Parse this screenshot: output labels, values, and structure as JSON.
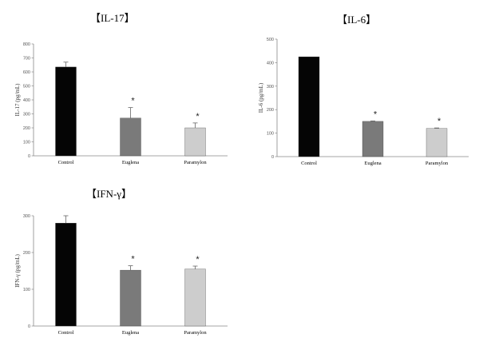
{
  "chart_data": [
    {
      "type": "bar",
      "title": "【IL-17】",
      "ylabel": "IL-17 (pg/mL)",
      "ylim": [
        0,
        800
      ],
      "yticks": [
        0,
        100,
        200,
        300,
        400,
        500,
        600,
        700,
        800
      ],
      "categories": [
        "Control",
        "Euglena",
        "Paramylon"
      ],
      "values": [
        635,
        270,
        200
      ],
      "errors": [
        35,
        75,
        35
      ],
      "significance": [
        "",
        "*",
        "*"
      ],
      "colors": [
        "#050505",
        "#7a7a7a",
        "#cdcdcd"
      ]
    },
    {
      "type": "bar",
      "title": "【IL-6】",
      "ylabel": "IL-6 (pg/mL)",
      "ylim": [
        0,
        500
      ],
      "yticks": [
        0,
        100,
        200,
        300,
        400,
        500
      ],
      "categories": [
        "Control",
        "Euglena",
        "Paramylon"
      ],
      "values": [
        425,
        150,
        120
      ],
      "errors": [
        0,
        2,
        2
      ],
      "significance": [
        "",
        "*",
        "*"
      ],
      "colors": [
        "#050505",
        "#7a7a7a",
        "#cdcdcd"
      ]
    },
    {
      "type": "bar",
      "title": "【IFN-γ】",
      "ylabel": "IFN-γ (pg/mL)",
      "ylim": [
        0,
        300
      ],
      "yticks": [
        0,
        100,
        200,
        300
      ],
      "categories": [
        "Control",
        "Euglena",
        "Paramylon"
      ],
      "values": [
        280,
        152,
        155
      ],
      "errors": [
        20,
        12,
        8
      ],
      "significance": [
        "",
        "*",
        "*"
      ],
      "colors": [
        "#050505",
        "#7a7a7a",
        "#cdcdcd"
      ]
    }
  ]
}
